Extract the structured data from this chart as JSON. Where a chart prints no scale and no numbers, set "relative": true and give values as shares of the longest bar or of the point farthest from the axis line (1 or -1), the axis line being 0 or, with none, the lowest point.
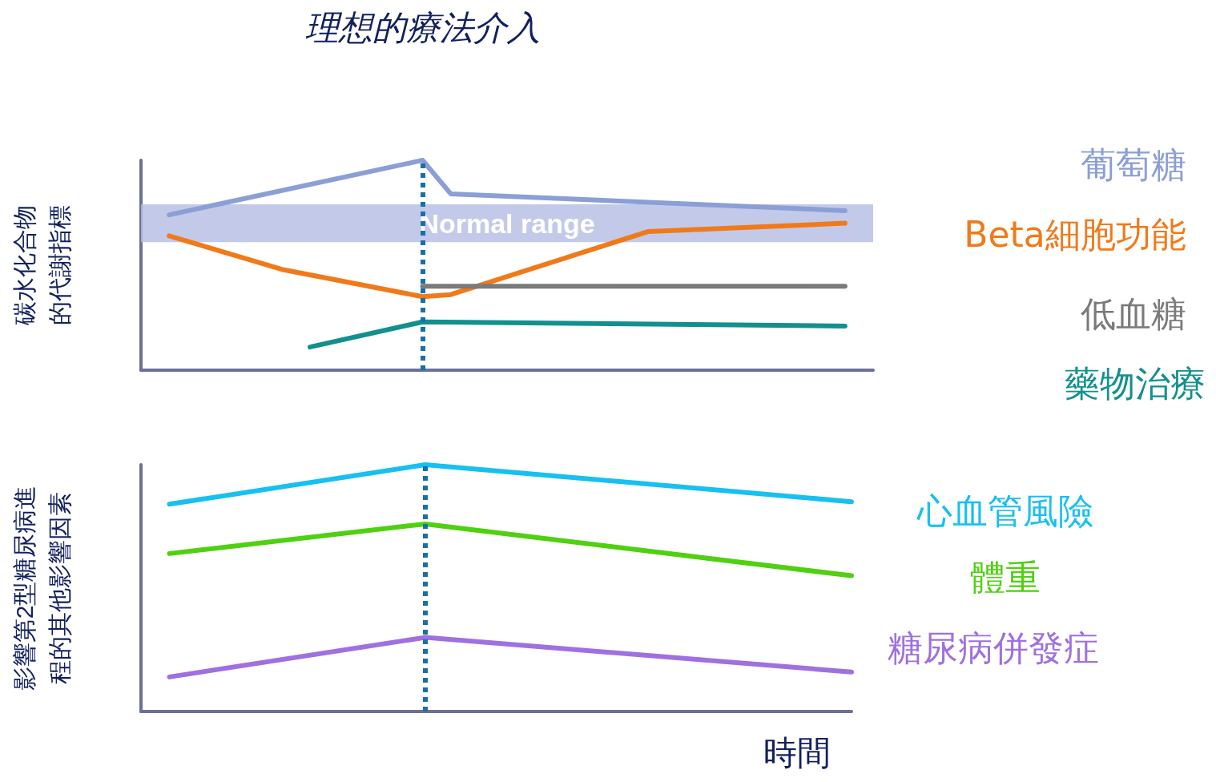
{
  "chart_data": [
    {
      "type": "line",
      "relative": true,
      "title": "理想的療法介入",
      "ylabel": "碳水化合物的代謝指標",
      "marker": "none",
      "grid": false,
      "categories": [
        null,
        null,
        null,
        null,
        null,
        null,
        null,
        null,
        null,
        null,
        null,
        null,
        null,
        null,
        null,
        null,
        null,
        null,
        null,
        null,
        null,
        null,
        null,
        null,
        null,
        null,
        null
      ],
      "series": [
        {
          "name": "葡萄糖",
          "color": "#8b9fd6",
          "values": [
            null,
            0.74,
            null,
            null,
            null,
            null,
            null,
            null,
            null,
            null,
            1.0,
            0.84,
            null,
            null,
            null,
            null,
            null,
            null,
            null,
            null,
            null,
            null,
            null,
            null,
            null,
            0.76,
            null
          ]
        },
        {
          "name": "Beta細胞功能",
          "color": "#f07a1a",
          "values": [
            null,
            0.64,
            null,
            null,
            null,
            0.48,
            null,
            null,
            null,
            null,
            0.35,
            0.36,
            null,
            null,
            null,
            null,
            null,
            null,
            0.66,
            null,
            null,
            null,
            null,
            null,
            null,
            0.7,
            null
          ]
        },
        {
          "name": "低血糖",
          "color": "#7a7a7a",
          "values": [
            null,
            null,
            null,
            null,
            null,
            null,
            null,
            null,
            null,
            null,
            0.4,
            null,
            null,
            null,
            null,
            null,
            null,
            null,
            null,
            null,
            null,
            null,
            null,
            null,
            null,
            0.4,
            null
          ]
        },
        {
          "name": "藥物治療",
          "color": "#12908e",
          "values": [
            null,
            null,
            null,
            null,
            null,
            null,
            0.11,
            null,
            null,
            null,
            0.23,
            null,
            null,
            null,
            null,
            null,
            null,
            null,
            null,
            null,
            null,
            null,
            null,
            null,
            null,
            0.21,
            null
          ]
        }
      ],
      "bands": [
        {
          "axis": "y",
          "from": 0.61,
          "to": 0.79,
          "label": "Normal range",
          "color": "#b4bde3"
        }
      ]
    },
    {
      "type": "line",
      "relative": true,
      "ylabel": "影響第2型糖尿病進程的其他影響因素",
      "xlabel": "時間",
      "marker": "none",
      "grid": false,
      "categories": [
        null,
        null,
        null,
        null,
        null,
        null,
        null,
        null,
        null,
        null,
        null,
        null,
        null,
        null,
        null,
        null,
        null,
        null,
        null,
        null,
        null,
        null,
        null,
        null,
        null,
        null
      ],
      "series": [
        {
          "name": "心血管風險",
          "color": "#17c0f0",
          "values": [
            null,
            0.84,
            null,
            null,
            null,
            null,
            null,
            null,
            null,
            null,
            1.0,
            null,
            null,
            null,
            null,
            null,
            null,
            null,
            null,
            null,
            null,
            null,
            null,
            null,
            null,
            0.85
          ]
        },
        {
          "name": "體重",
          "color": "#4fd010",
          "values": [
            null,
            0.64,
            null,
            null,
            null,
            null,
            null,
            null,
            null,
            null,
            0.76,
            null,
            null,
            null,
            null,
            null,
            null,
            null,
            null,
            null,
            null,
            null,
            null,
            null,
            null,
            0.55
          ]
        },
        {
          "name": "糖尿病併發症",
          "color": "#a070e0",
          "values": [
            null,
            0.14,
            null,
            null,
            null,
            null,
            null,
            null,
            null,
            null,
            0.3,
            null,
            null,
            null,
            null,
            null,
            null,
            null,
            null,
            null,
            null,
            null,
            null,
            null,
            null,
            0.16
          ]
        }
      ]
    }
  ]
}
